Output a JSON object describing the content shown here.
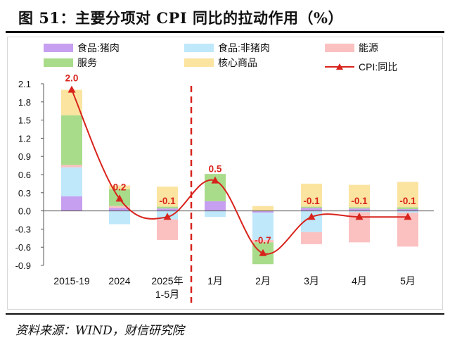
{
  "title": "图 51：主要分项对 CPI 同比的拉动作用（%）",
  "source": "资料来源：WIND，财信研究院",
  "colors": {
    "pork": "#c79ff0",
    "non_pork": "#bfe8fb",
    "energy": "#fbc1c1",
    "services": "#a9dc8a",
    "core_goods": "#fbe4a0",
    "cpi_line": "#d8231c",
    "divider": "#d8231c"
  },
  "chart_data": {
    "type": "bar",
    "stacked": true,
    "categories": [
      "2015-19",
      "2024",
      "2025年\n1-5月",
      "1月",
      "2月",
      "3月",
      "4月",
      "5月"
    ],
    "ylim": [
      -0.9,
      2.1
    ],
    "yticks": [
      -0.9,
      -0.6,
      -0.3,
      0.0,
      0.3,
      0.6,
      0.9,
      1.2,
      1.5,
      1.8,
      2.1
    ],
    "ytick_labels": [
      "-0.9",
      "-0.6",
      "-0.3",
      "0.0",
      "0.3",
      "0.6",
      "0.9",
      "1.2",
      "1.5",
      "1.8",
      "2.1"
    ],
    "divider_after_index": 2,
    "legend_position": "top",
    "series": [
      {
        "name": "食品:猪肉",
        "key": "pork",
        "values": [
          0.24,
          0.05,
          0.04,
          0.16,
          -0.03,
          0.05,
          0.04,
          0.03
        ]
      },
      {
        "name": "食品:非猪肉",
        "key": "non_pork",
        "values": [
          0.48,
          -0.22,
          -0.14,
          -0.1,
          -0.45,
          -0.35,
          -0.02,
          -0.03
        ]
      },
      {
        "name": "能源",
        "key": "energy",
        "values": [
          0.04,
          0.03,
          -0.34,
          0.0,
          -0.04,
          -0.2,
          -0.5,
          -0.56
        ]
      },
      {
        "name": "服务",
        "key": "services",
        "values": [
          0.82,
          0.28,
          0.03,
          0.45,
          -0.36,
          0.02,
          0.02,
          0.03
        ]
      },
      {
        "name": "核心商品",
        "key": "core_goods",
        "values": [
          0.42,
          0.06,
          0.33,
          0.0,
          0.08,
          0.38,
          0.37,
          0.42
        ]
      }
    ],
    "line": {
      "name": "CPI:同比",
      "values": [
        2.0,
        0.2,
        -0.1,
        0.5,
        -0.7,
        -0.1,
        -0.1,
        -0.1
      ],
      "labels": [
        "2.0",
        "0.2",
        "-0.1",
        "0.5",
        "-0.7",
        "-0.1",
        "-0.1",
        "-0.1"
      ]
    }
  }
}
